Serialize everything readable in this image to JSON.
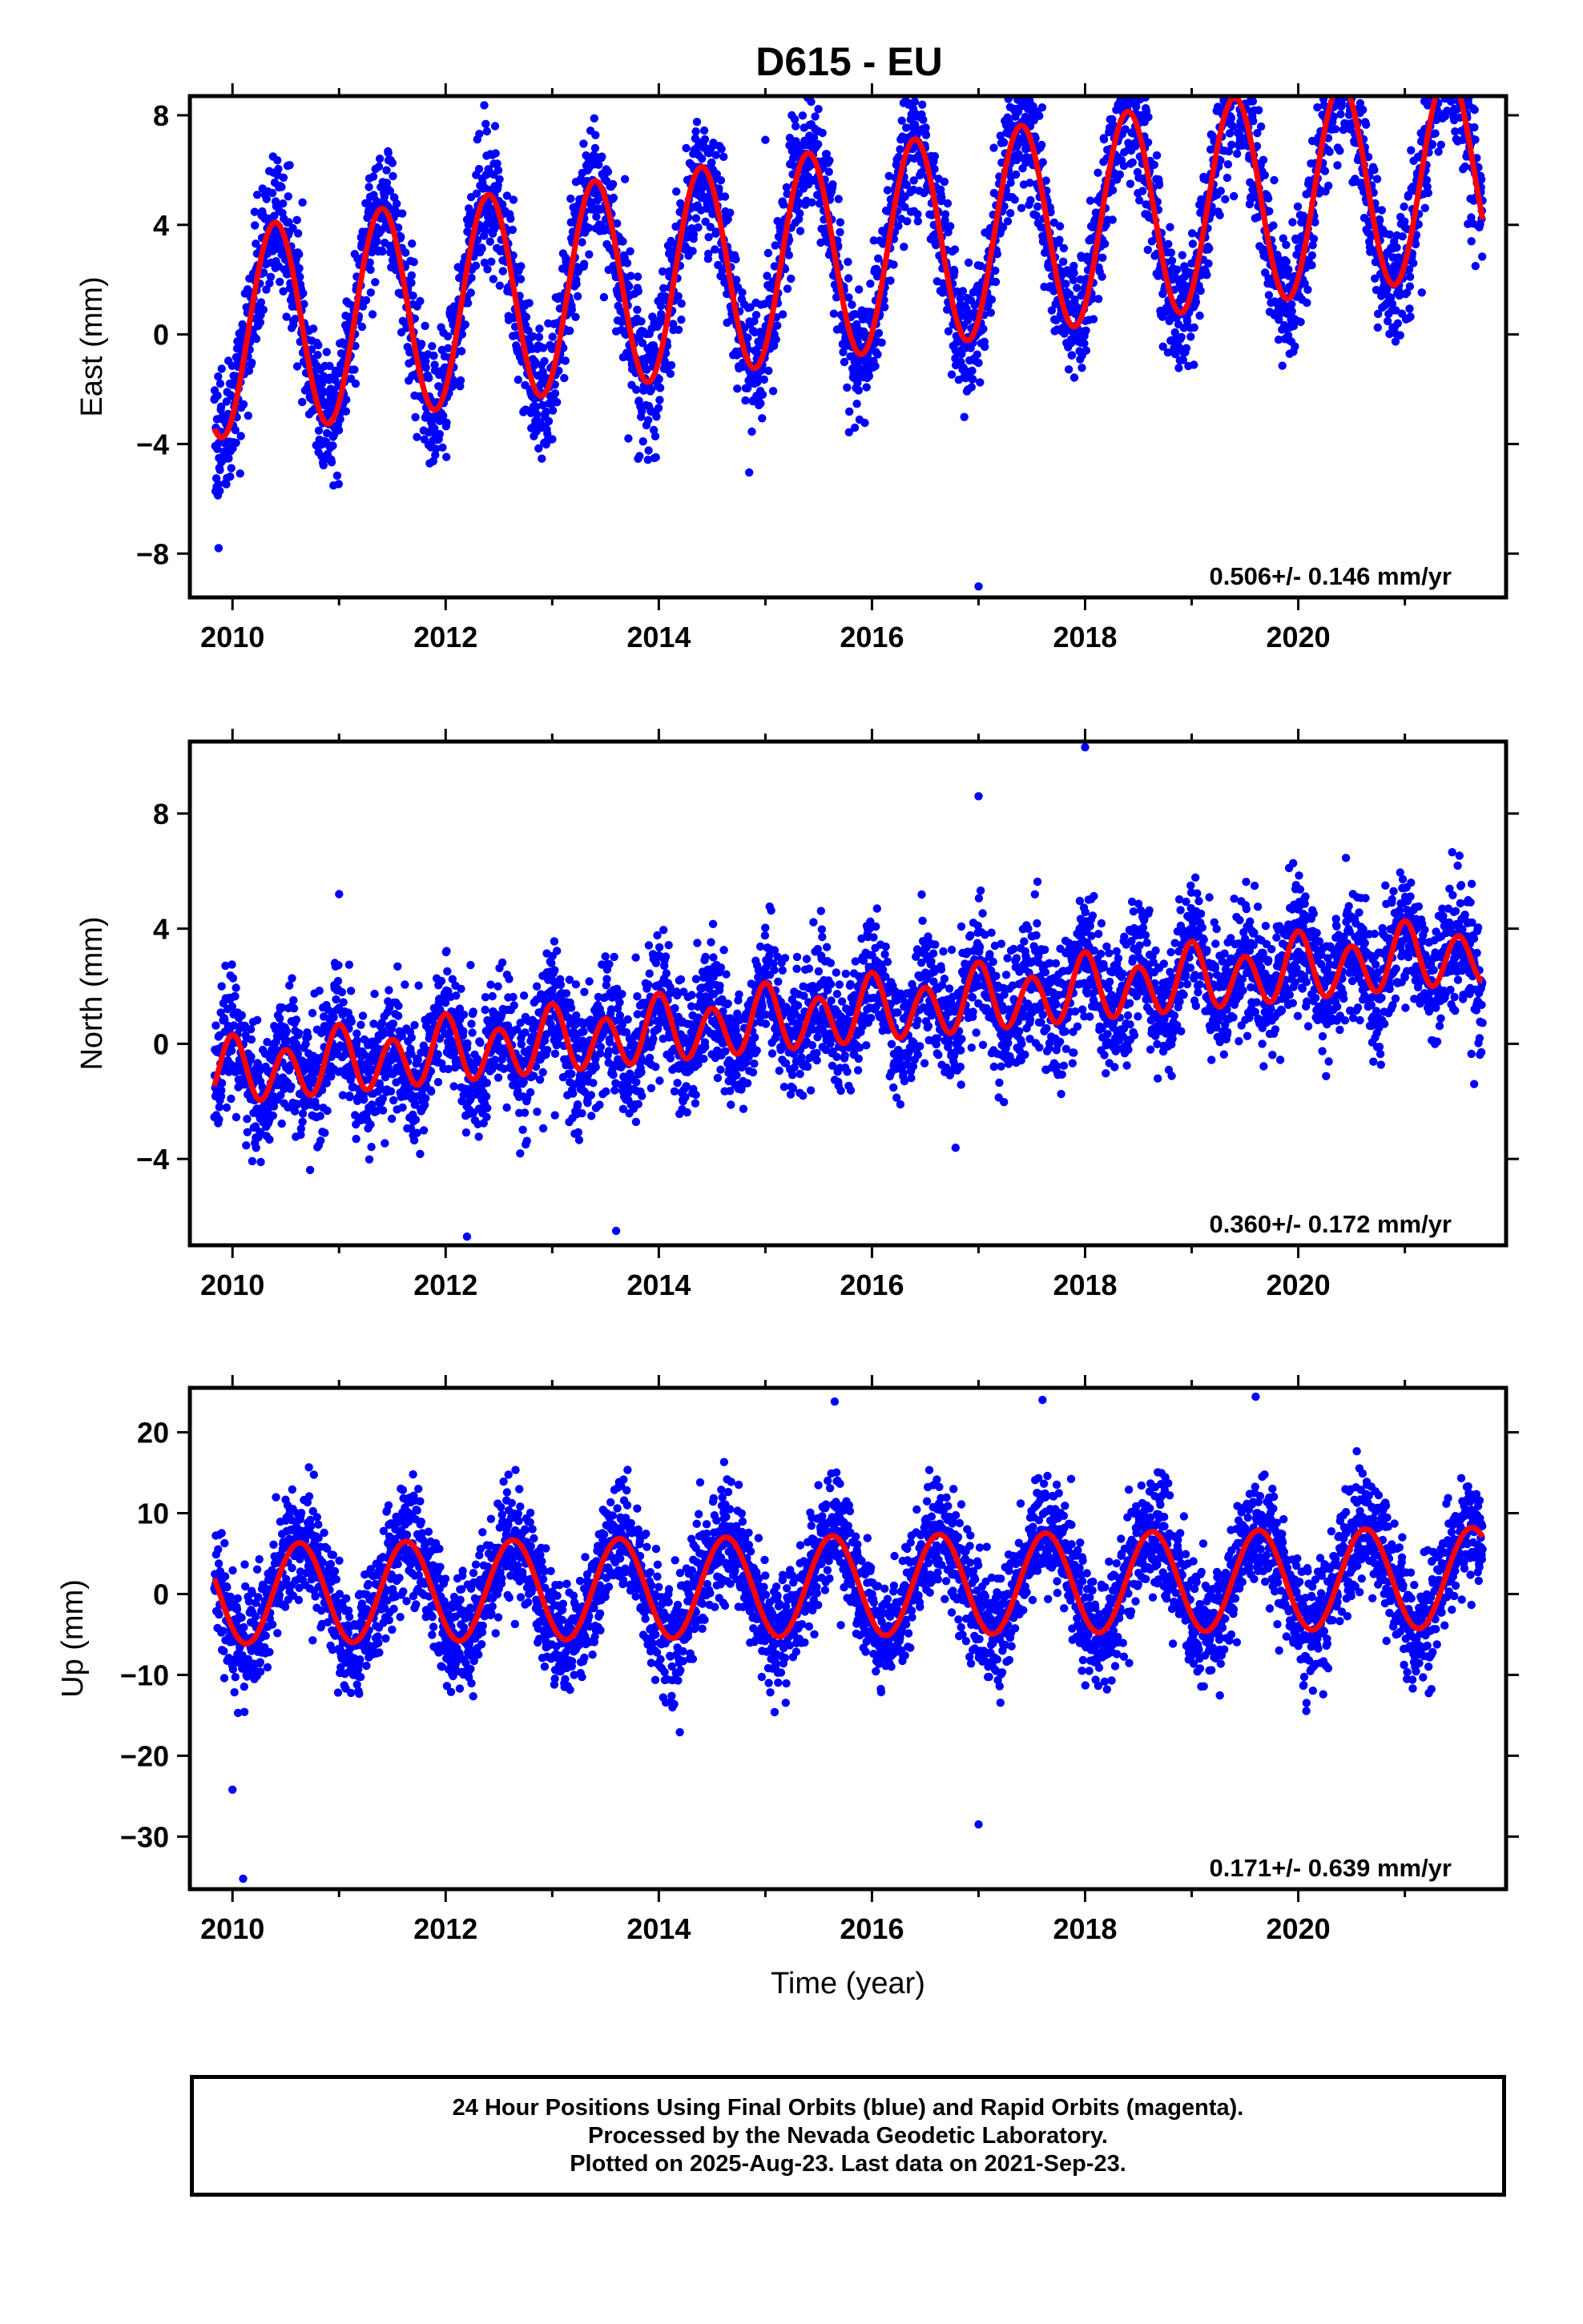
{
  "title": "D615 - EU",
  "footer": {
    "line1": "24 Hour Positions Using Final Orbits (blue) and Rapid Orbits (magenta).",
    "line2": "Processed by the Nevada Geodetic Laboratory.",
    "line3": "Plotted on 2025-Aug-23. Last data on 2021-Sep-23."
  },
  "colors": {
    "final_orbits": "#0000ff",
    "model": "#ff0000",
    "frame": "#000000"
  },
  "chart_data": [
    {
      "type": "scatter",
      "component": "east",
      "ylabel": "East (mm)",
      "xlabel": "",
      "xlim": [
        2009.6,
        2021.95
      ],
      "ylim": [
        -9.6,
        8.7
      ],
      "x_ticks": [
        2010,
        2012,
        2014,
        2016,
        2018,
        2020
      ],
      "y_ticks": [
        -8,
        -4,
        0,
        4,
        8
      ],
      "rate_label": "0.506+/- 0.146 mm/yr",
      "model": {
        "start": 2009.83,
        "end": 2021.73,
        "offset": 0.0,
        "trend_per_yr": 0.506,
        "annual_amp": 3.8,
        "annual_peak": 2009.4,
        "semiannual_amp": 0.0
      },
      "scatter": {
        "noise_sd": 1.2,
        "outliers": [
          [
            2017.0,
            -9.2
          ],
          [
            2015.0,
            7.1
          ],
          [
            2014.4,
            5.1
          ],
          [
            2009.87,
            -7.8
          ]
        ]
      }
    },
    {
      "type": "scatter",
      "component": "north",
      "ylabel": "North (mm)",
      "xlabel": "",
      "xlim": [
        2009.6,
        2021.95
      ],
      "ylim": [
        -7.0,
        10.5
      ],
      "x_ticks": [
        2010,
        2012,
        2014,
        2016,
        2018,
        2020
      ],
      "y_ticks": [
        -4,
        0,
        4,
        8
      ],
      "rate_label": "0.360+/- 0.172 mm/yr",
      "model": {
        "start": 2009.83,
        "end": 2021.73,
        "offset": -1.1,
        "trend_per_yr": 0.36,
        "annual_amp": 0.35,
        "annual_peak": 2009.0,
        "semiannual_amp": 1.0
      },
      "scatter": {
        "noise_sd": 1.1,
        "outliers": [
          [
            2018.0,
            10.3
          ],
          [
            2017.0,
            8.6
          ],
          [
            2012.2,
            -6.7
          ],
          [
            2013.6,
            -6.5
          ],
          [
            2011.0,
            5.2
          ],
          [
            2021.65,
            -1.4
          ]
        ]
      }
    },
    {
      "type": "scatter",
      "component": "up",
      "ylabel": "Up (mm)",
      "xlabel": "Time (year)",
      "xlim": [
        2009.6,
        2021.95
      ],
      "ylim": [
        -36.5,
        25.5
      ],
      "x_ticks": [
        2010,
        2012,
        2014,
        2016,
        2018,
        2020
      ],
      "y_ticks": [
        -30,
        -20,
        -10,
        0,
        10,
        20
      ],
      "rate_label": "0.171+/- 0.639 mm/yr",
      "model": {
        "start": 2009.83,
        "end": 2021.73,
        "offset": 0.0,
        "trend_per_yr": 0.171,
        "annual_amp": 6.2,
        "annual_peak": 2009.63,
        "semiannual_amp": 0.0
      },
      "scatter": {
        "noise_sd": 3.5,
        "outliers": [
          [
            2010.1,
            -35.2
          ],
          [
            2010.0,
            -24.2
          ],
          [
            2017.0,
            -28.5
          ],
          [
            2017.6,
            24.0
          ],
          [
            2015.65,
            23.8
          ],
          [
            2019.6,
            24.4
          ]
        ]
      }
    }
  ]
}
